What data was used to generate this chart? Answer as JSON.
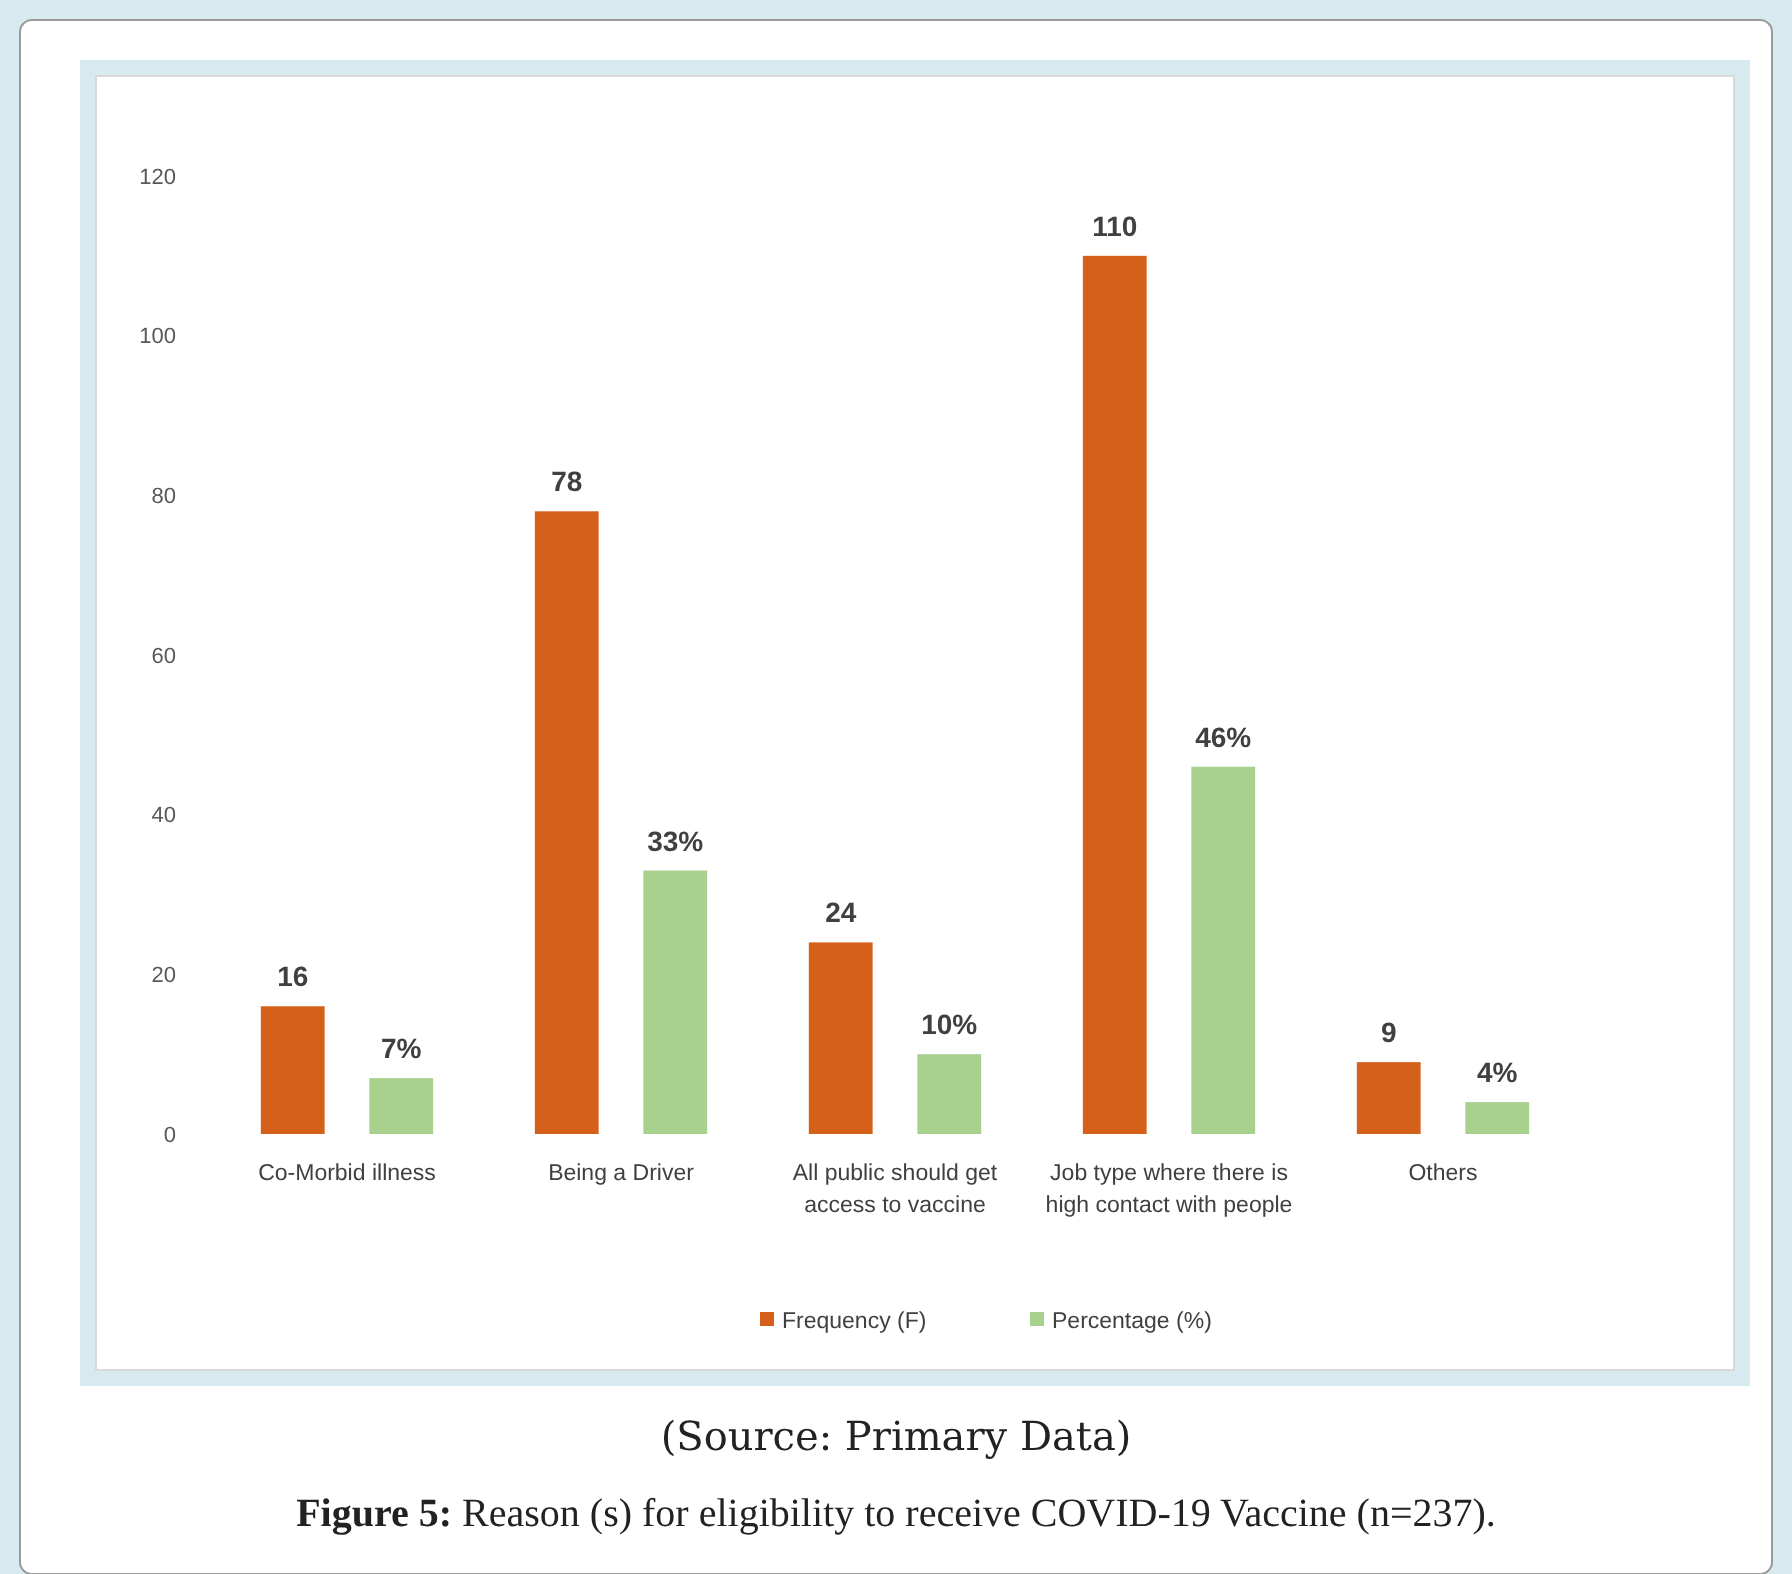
{
  "chart_data": {
    "type": "bar",
    "title": "Figure 5: Reason (s) for eligibility to receive COVID-19 Vaccine (n=237).",
    "annotations": [
      "(Source: Primary Data)"
    ],
    "categories": [
      "Co-Morbid illness",
      "Being a Driver",
      "All public should get access to vaccine",
      "Job type where there is high contact with people",
      "Others"
    ],
    "series": [
      {
        "name": "Frequency (F)",
        "color": "#d4601a",
        "values": [
          16,
          78,
          24,
          110,
          9
        ],
        "value_labels": [
          "16",
          "78",
          "24",
          "110",
          "9"
        ]
      },
      {
        "name": "Percentage (%)",
        "color": "#a9d18e",
        "values": [
          7,
          33,
          10,
          46,
          4
        ],
        "value_labels": [
          "7%",
          "33%",
          "10%",
          "46%",
          "4%"
        ]
      }
    ],
    "ylim": [
      0,
      120
    ],
    "yticks": [
      0,
      20,
      40,
      60,
      80,
      100,
      120
    ],
    "legend": "bottom"
  }
}
